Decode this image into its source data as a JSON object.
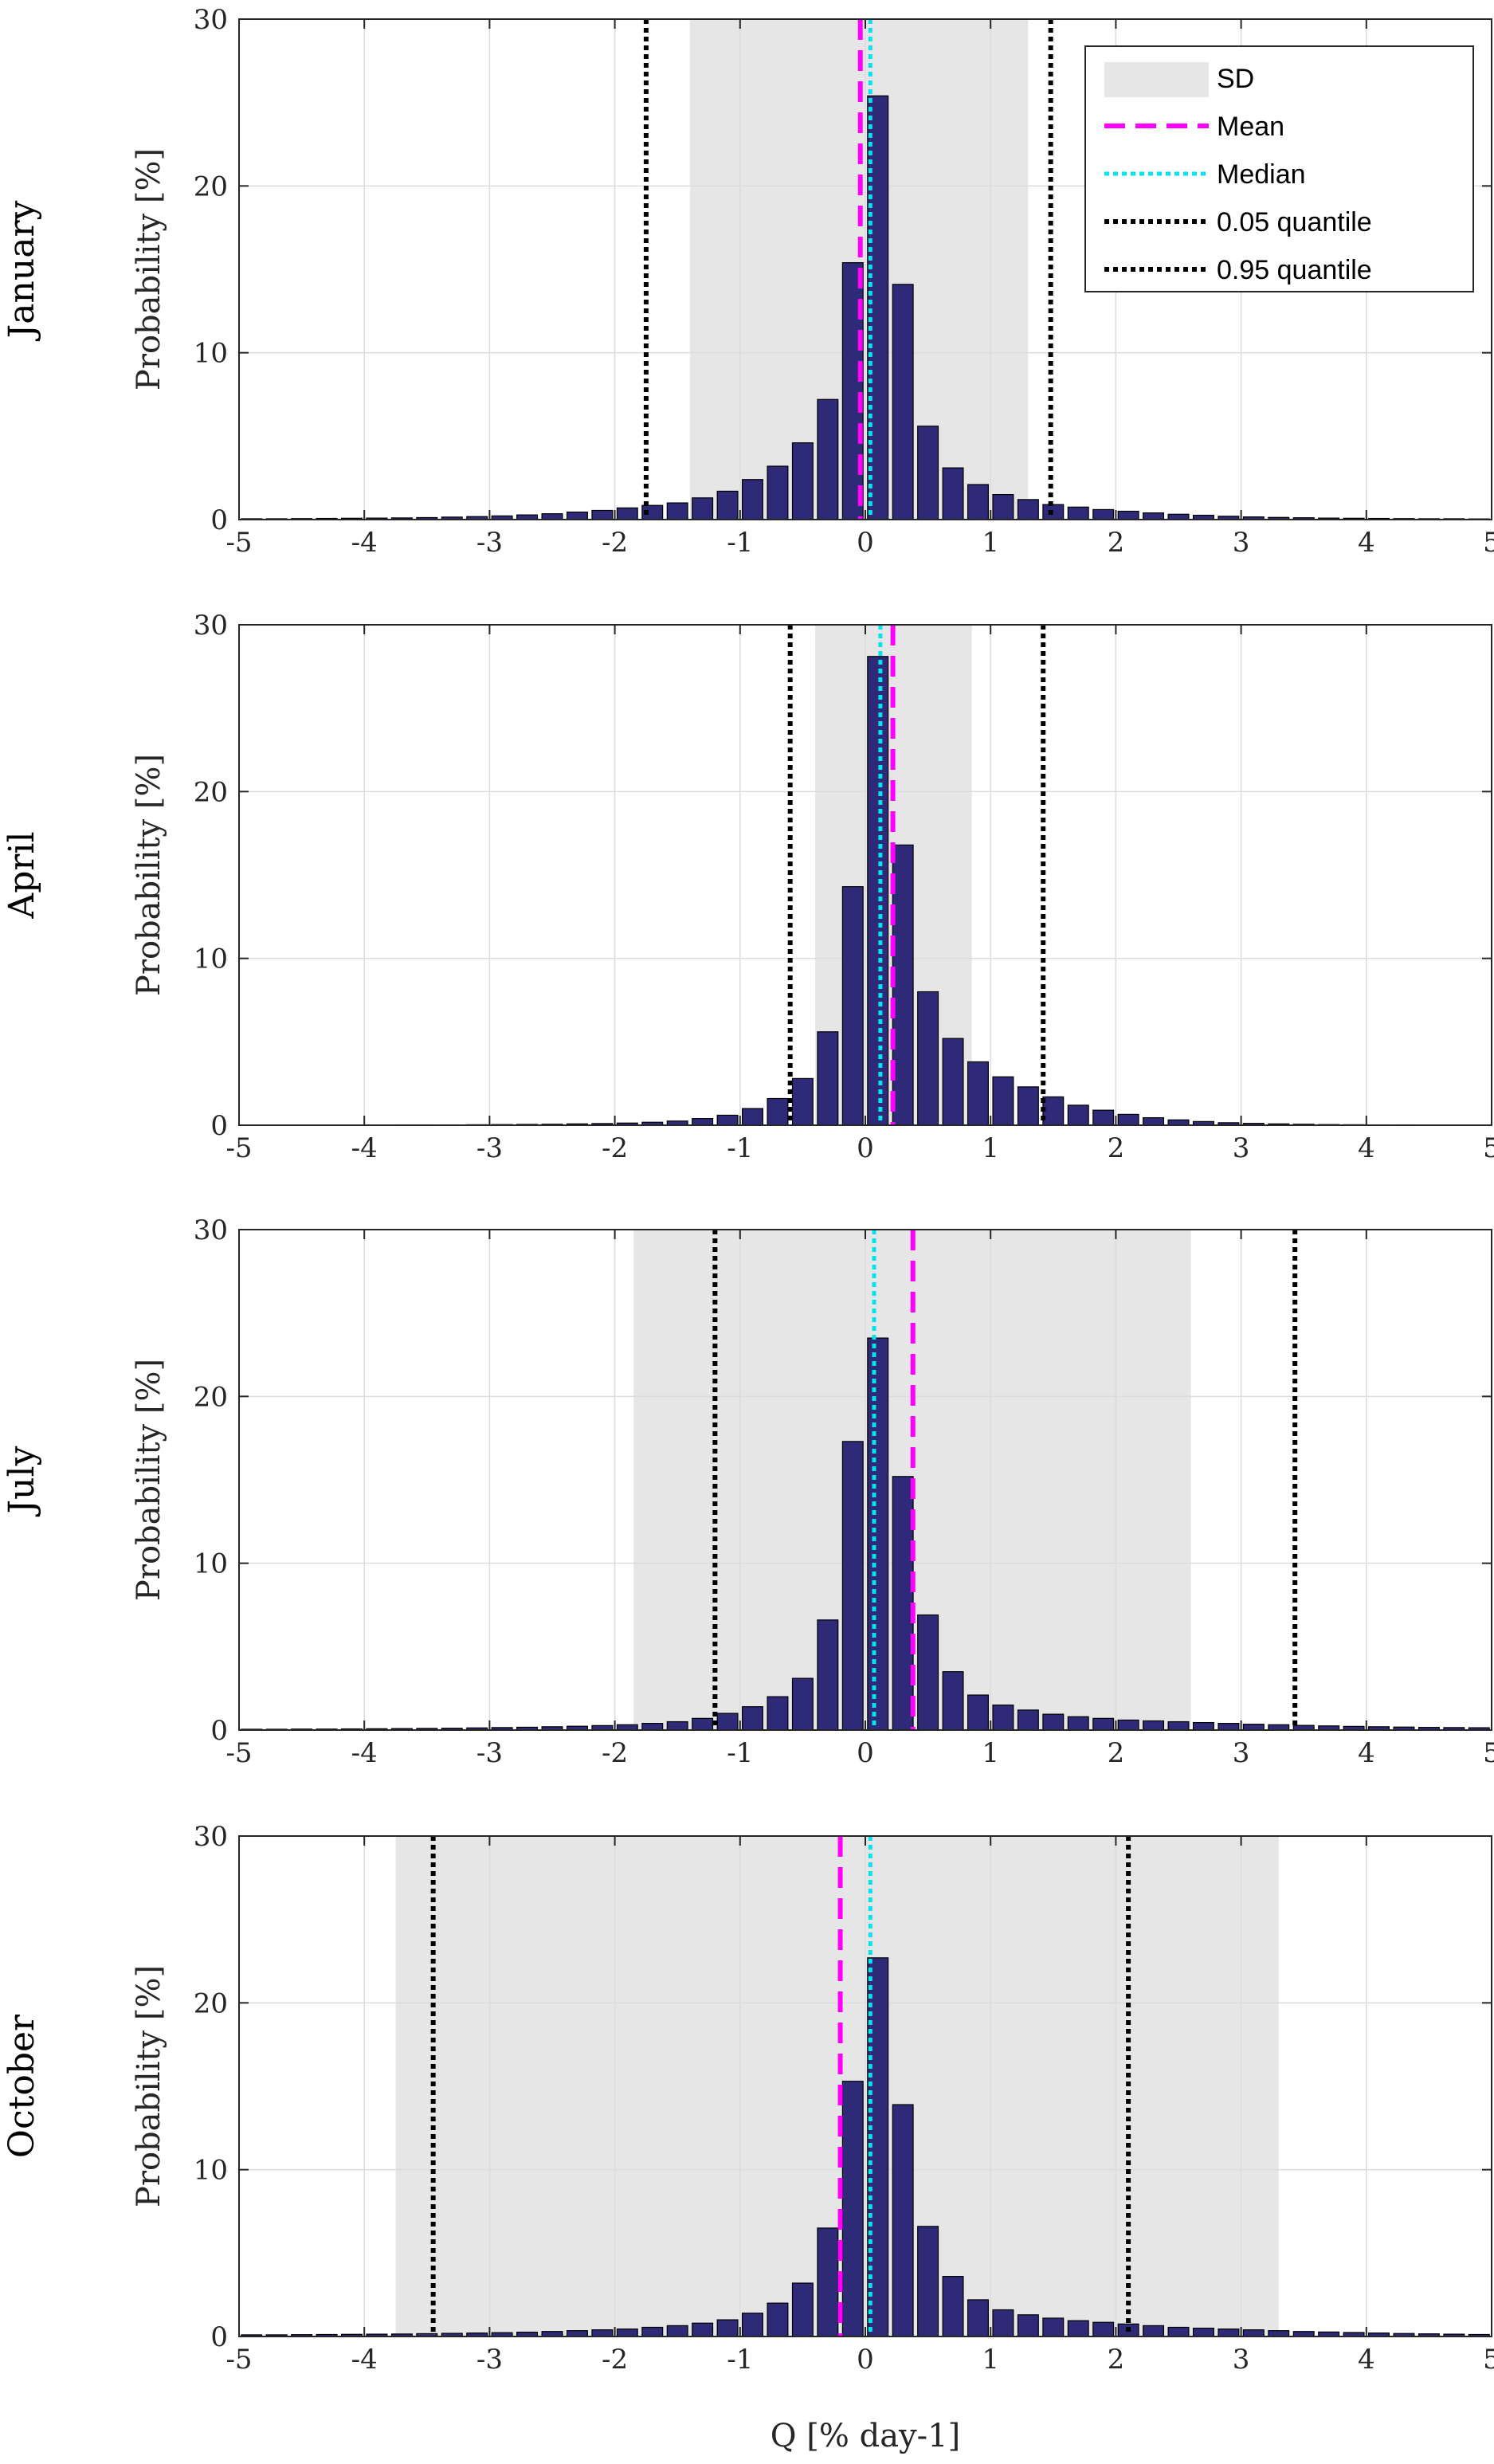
{
  "chart_data": [
    {
      "type": "bar",
      "title": "January",
      "xlabel": "Q [% day-1]",
      "ylabel": "Probability [%]",
      "xlim": [
        -5,
        5
      ],
      "ylim": [
        0,
        30
      ],
      "xticks": [
        -5,
        -4,
        -3,
        -2,
        -1,
        0,
        1,
        2,
        3,
        4,
        5
      ],
      "yticks": [
        0,
        10,
        20,
        30
      ],
      "grid": true,
      "bar_width": 0.2,
      "x": [
        -4.9,
        -4.7,
        -4.5,
        -4.3,
        -4.1,
        -3.9,
        -3.7,
        -3.5,
        -3.3,
        -3.1,
        -2.9,
        -2.7,
        -2.5,
        -2.3,
        -2.1,
        -1.9,
        -1.7,
        -1.5,
        -1.3,
        -1.1,
        -0.9,
        -0.7,
        -0.5,
        -0.3,
        -0.1,
        0.1,
        0.3,
        0.5,
        0.7,
        0.9,
        1.1,
        1.3,
        1.5,
        1.7,
        1.9,
        2.1,
        2.3,
        2.5,
        2.7,
        2.9,
        3.1,
        3.3,
        3.5,
        3.7,
        3.9,
        4.1,
        4.3,
        4.5,
        4.7,
        4.9
      ],
      "values": [
        0.05,
        0.05,
        0.06,
        0.07,
        0.08,
        0.09,
        0.1,
        0.12,
        0.15,
        0.18,
        0.22,
        0.28,
        0.35,
        0.45,
        0.55,
        0.7,
        0.85,
        1.0,
        1.3,
        1.7,
        2.4,
        3.2,
        4.6,
        7.2,
        15.4,
        25.4,
        14.1,
        5.6,
        3.1,
        2.1,
        1.5,
        1.2,
        0.9,
        0.75,
        0.6,
        0.5,
        0.4,
        0.32,
        0.26,
        0.2,
        0.16,
        0.13,
        0.11,
        0.09,
        0.08,
        0.07,
        0.06,
        0.05,
        0.05,
        0.04
      ],
      "sd_range": [
        -1.4,
        1.3
      ],
      "mean": -0.04,
      "median": 0.04,
      "q05": -1.75,
      "q95": 1.48,
      "legend": {
        "placement": "top-right",
        "entries": [
          "SD",
          "Mean",
          "Median",
          "0.05 quantile",
          "0.95 quantile"
        ]
      }
    },
    {
      "type": "bar",
      "title": "April",
      "xlabel": "Q [% day-1]",
      "ylabel": "Probability [%]",
      "xlim": [
        -5,
        5
      ],
      "ylim": [
        0,
        30
      ],
      "xticks": [
        -5,
        -4,
        -3,
        -2,
        -1,
        0,
        1,
        2,
        3,
        4,
        5
      ],
      "yticks": [
        0,
        10,
        20,
        30
      ],
      "grid": true,
      "bar_width": 0.2,
      "x": [
        -4.9,
        -4.7,
        -4.5,
        -4.3,
        -4.1,
        -3.9,
        -3.7,
        -3.5,
        -3.3,
        -3.1,
        -2.9,
        -2.7,
        -2.5,
        -2.3,
        -2.1,
        -1.9,
        -1.7,
        -1.5,
        -1.3,
        -1.1,
        -0.9,
        -0.7,
        -0.5,
        -0.3,
        -0.1,
        0.1,
        0.3,
        0.5,
        0.7,
        0.9,
        1.1,
        1.3,
        1.5,
        1.7,
        1.9,
        2.1,
        2.3,
        2.5,
        2.7,
        2.9,
        3.1,
        3.3,
        3.5,
        3.7,
        3.9,
        4.1,
        4.3,
        4.5,
        4.7,
        4.9
      ],
      "values": [
        0.01,
        0.01,
        0.01,
        0.01,
        0.01,
        0.01,
        0.02,
        0.02,
        0.02,
        0.03,
        0.04,
        0.05,
        0.06,
        0.08,
        0.1,
        0.13,
        0.18,
        0.25,
        0.4,
        0.6,
        1.0,
        1.6,
        2.8,
        5.6,
        14.3,
        28.1,
        16.8,
        8.0,
        5.2,
        3.8,
        2.9,
        2.3,
        1.7,
        1.2,
        0.9,
        0.65,
        0.45,
        0.32,
        0.22,
        0.15,
        0.11,
        0.08,
        0.06,
        0.04,
        0.03,
        0.02,
        0.02,
        0.01,
        0.01,
        0.01
      ],
      "sd_range": [
        -0.4,
        0.85
      ],
      "mean": 0.22,
      "median": 0.12,
      "q05": -0.6,
      "q95": 1.42
    },
    {
      "type": "bar",
      "title": "July",
      "xlabel": "Q [% day-1]",
      "ylabel": "Probability [%]",
      "xlim": [
        -5,
        5
      ],
      "ylim": [
        0,
        30
      ],
      "xticks": [
        -5,
        -4,
        -3,
        -2,
        -1,
        0,
        1,
        2,
        3,
        4,
        5
      ],
      "yticks": [
        0,
        10,
        20,
        30
      ],
      "grid": true,
      "bar_width": 0.2,
      "x": [
        -4.9,
        -4.7,
        -4.5,
        -4.3,
        -4.1,
        -3.9,
        -3.7,
        -3.5,
        -3.3,
        -3.1,
        -2.9,
        -2.7,
        -2.5,
        -2.3,
        -2.1,
        -1.9,
        -1.7,
        -1.5,
        -1.3,
        -1.1,
        -0.9,
        -0.7,
        -0.5,
        -0.3,
        -0.1,
        0.1,
        0.3,
        0.5,
        0.7,
        0.9,
        1.1,
        1.3,
        1.5,
        1.7,
        1.9,
        2.1,
        2.3,
        2.5,
        2.7,
        2.9,
        3.1,
        3.3,
        3.5,
        3.7,
        3.9,
        4.1,
        4.3,
        4.5,
        4.7,
        4.9
      ],
      "values": [
        0.05,
        0.05,
        0.06,
        0.06,
        0.07,
        0.08,
        0.09,
        0.1,
        0.11,
        0.13,
        0.15,
        0.17,
        0.2,
        0.23,
        0.27,
        0.32,
        0.4,
        0.5,
        0.7,
        1.0,
        1.4,
        2.0,
        3.1,
        6.6,
        17.3,
        23.5,
        15.2,
        6.9,
        3.5,
        2.1,
        1.5,
        1.2,
        0.95,
        0.8,
        0.7,
        0.6,
        0.55,
        0.5,
        0.45,
        0.4,
        0.35,
        0.32,
        0.28,
        0.25,
        0.22,
        0.2,
        0.18,
        0.16,
        0.15,
        0.14
      ],
      "sd_range": [
        -1.85,
        2.6
      ],
      "mean": 0.38,
      "median": 0.07,
      "q05": -1.2,
      "q95": 3.43
    },
    {
      "type": "bar",
      "title": "October",
      "xlabel": "Q [% day-1]",
      "ylabel": "Probability [%]",
      "xlim": [
        -5,
        5
      ],
      "ylim": [
        0,
        30
      ],
      "xticks": [
        -5,
        -4,
        -3,
        -2,
        -1,
        0,
        1,
        2,
        3,
        4,
        5
      ],
      "yticks": [
        0,
        10,
        20,
        30
      ],
      "grid": true,
      "bar_width": 0.2,
      "x": [
        -4.9,
        -4.7,
        -4.5,
        -4.3,
        -4.1,
        -3.9,
        -3.7,
        -3.5,
        -3.3,
        -3.1,
        -2.9,
        -2.7,
        -2.5,
        -2.3,
        -2.1,
        -1.9,
        -1.7,
        -1.5,
        -1.3,
        -1.1,
        -0.9,
        -0.7,
        -0.5,
        -0.3,
        -0.1,
        0.1,
        0.3,
        0.5,
        0.7,
        0.9,
        1.1,
        1.3,
        1.5,
        1.7,
        1.9,
        2.1,
        2.3,
        2.5,
        2.7,
        2.9,
        3.1,
        3.3,
        3.5,
        3.7,
        3.9,
        4.1,
        4.3,
        4.5,
        4.7,
        4.9
      ],
      "values": [
        0.1,
        0.1,
        0.11,
        0.12,
        0.13,
        0.14,
        0.15,
        0.17,
        0.19,
        0.21,
        0.23,
        0.26,
        0.3,
        0.35,
        0.4,
        0.45,
        0.55,
        0.65,
        0.8,
        1.0,
        1.4,
        2.0,
        3.2,
        6.5,
        15.3,
        22.7,
        13.9,
        6.6,
        3.6,
        2.2,
        1.6,
        1.3,
        1.1,
        0.95,
        0.85,
        0.75,
        0.65,
        0.55,
        0.5,
        0.45,
        0.4,
        0.35,
        0.3,
        0.27,
        0.24,
        0.21,
        0.18,
        0.16,
        0.14,
        0.12
      ],
      "sd_range": [
        -3.75,
        3.3
      ],
      "mean": -0.2,
      "median": 0.04,
      "q05": -3.45,
      "q95": 2.1
    }
  ],
  "colors": {
    "bar": "#2e2a78",
    "sd_fill": "#e6e6e6",
    "mean": "#ff00ff",
    "median": "#00e5ee",
    "quantile": "#000000",
    "grid": "#dcdcdc"
  }
}
